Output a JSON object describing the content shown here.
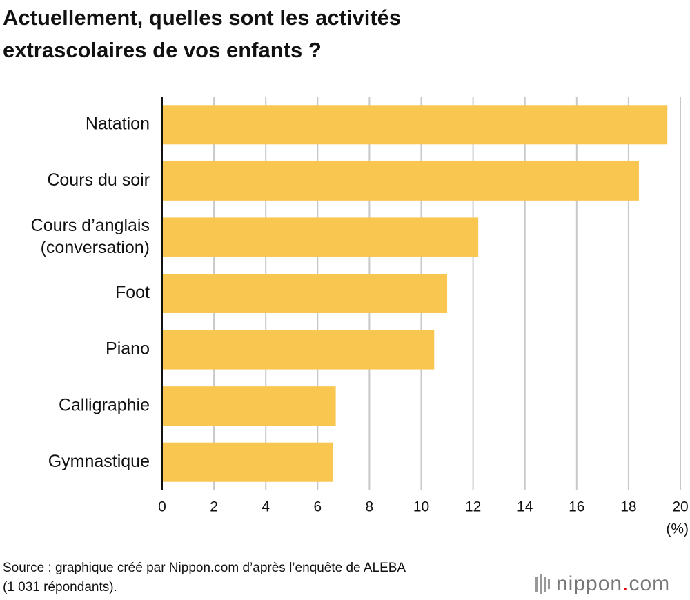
{
  "chart_data": {
    "type": "bar",
    "orientation": "horizontal",
    "title": [
      "Actuellement, quelles sont les activités",
      "extrascolaires de vos enfants ?"
    ],
    "categories": [
      "Natation",
      "Cours du soir",
      "Cours d’anglais\n(conversation)",
      "Foot",
      "Piano",
      "Calligraphie",
      "Gymnastique"
    ],
    "values": [
      19.5,
      18.4,
      12.2,
      11.0,
      10.5,
      6.7,
      6.6
    ],
    "color": "#f9c650",
    "xlim": [
      0,
      20
    ],
    "xticks": [
      0,
      2,
      4,
      6,
      8,
      10,
      12,
      14,
      16,
      18,
      20
    ],
    "x_label": "(%)",
    "grid": true,
    "source": [
      "Source : graphique créé par Nippon.com d’après l’enquête de ALEBA",
      "(1 031 répondants)."
    ],
    "logo": "nippon.com"
  }
}
